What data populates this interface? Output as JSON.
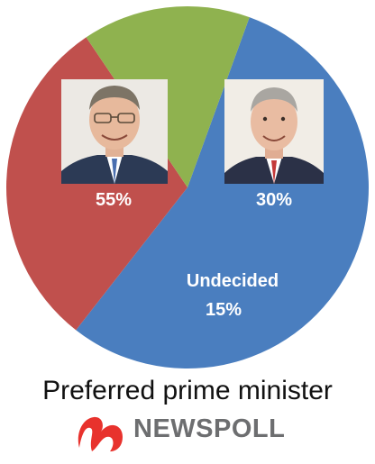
{
  "chart_data": {
    "type": "pie",
    "title": "Preferred prime minister",
    "slices": [
      {
        "label": "",
        "value": 55,
        "value_label": "55%",
        "color": "#4a7ebf",
        "portrait": "morrison-photo"
      },
      {
        "label": "",
        "value": 30,
        "value_label": "30%",
        "color": "#c0504d",
        "portrait": "shorten-photo"
      },
      {
        "label": "Undecided",
        "value": 15,
        "value_label": "15%",
        "color": "#8fb24f"
      }
    ],
    "start_angle_deg": 20,
    "legend": "none"
  },
  "logo": {
    "text": "NEWSPOLL",
    "mark_color": "#e8322d"
  }
}
